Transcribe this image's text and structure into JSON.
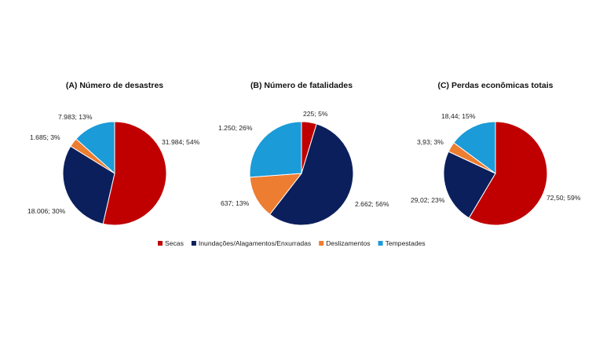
{
  "legend": [
    "Secas",
    "Inundações/Alagamentos/Enxurradas",
    "Deslizamentos",
    "Tempestades"
  ],
  "colors": {
    "Secas": "#C00000",
    "Inundações/Alagamentos/Enxurradas": "#0B1F5C",
    "Deslizamentos": "#ED7D31",
    "Tempestades": "#1B9BD7"
  },
  "chart_data": [
    {
      "type": "pie",
      "title": "(A) Número de desastres",
      "categories": [
        "Secas",
        "Inundações/Alagamentos/Enxurradas",
        "Deslizamentos",
        "Tempestades"
      ],
      "values": [
        31984,
        18006,
        1685,
        7983
      ],
      "percentages": [
        54,
        30,
        3,
        13
      ],
      "data_labels": [
        "31.984; 54%",
        "18.006; 30%",
        "1.685; 3%",
        "7.983; 13%"
      ]
    },
    {
      "type": "pie",
      "title": "(B) Número de fatalidades",
      "categories": [
        "Secas",
        "Inundações/Alagamentos/Enxurradas",
        "Deslizamentos",
        "Tempestades"
      ],
      "values": [
        225,
        2662,
        637,
        1250
      ],
      "percentages": [
        5,
        56,
        13,
        26
      ],
      "data_labels": [
        "225; 5%",
        "2.662; 56%",
        "637; 13%",
        "1.250; 26%"
      ]
    },
    {
      "type": "pie",
      "title": "(C) Perdas econômicas totais",
      "categories": [
        "Secas",
        "Inundações/Alagamentos/Enxurradas",
        "Deslizamentos",
        "Tempestades"
      ],
      "values": [
        72.5,
        29.02,
        3.93,
        18.44
      ],
      "percentages": [
        59,
        23,
        3,
        15
      ],
      "data_labels": [
        "72,50; 59%",
        "29,02; 23%",
        "3,93; 3%",
        "18,44; 15%"
      ]
    }
  ]
}
